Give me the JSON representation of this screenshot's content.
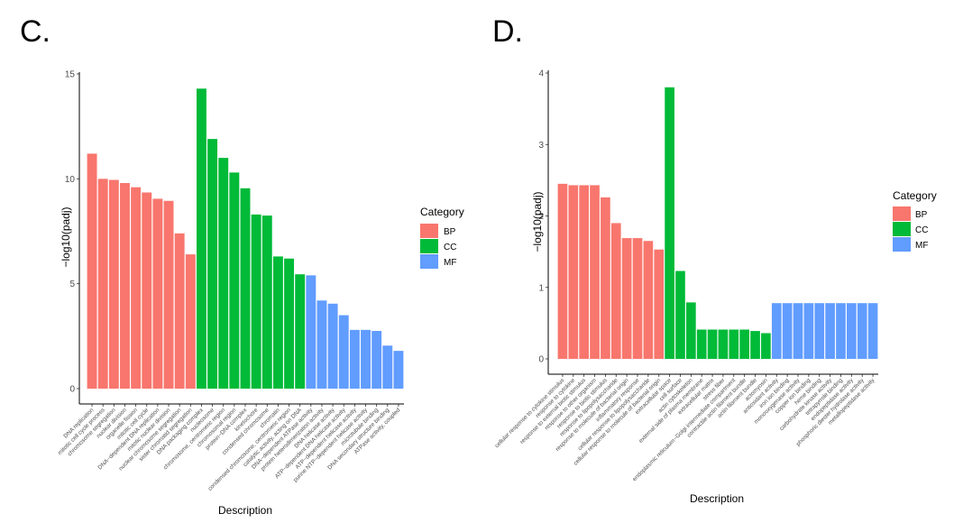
{
  "colors": {
    "BP": "#F8766D",
    "CC": "#00BA38",
    "MF": "#619CFF"
  },
  "chart_data": [
    {
      "panel": "C.",
      "type": "bar",
      "xlabel": "Description",
      "ylabel": "−log10(padj)",
      "ylim": [
        0,
        15
      ],
      "yticks": [
        "0",
        "5",
        "10",
        "15"
      ],
      "legend_title": "Category",
      "legend": [
        "BP",
        "CC",
        "MF"
      ],
      "categories": [
        "DNA replication",
        "mitotic cell cycle process",
        "chromosome segregation",
        "nuclear division",
        "organelle fission",
        "mitotic cell cycle",
        "DNA−dependent DNA replication",
        "mitotic nuclear division",
        "nuclear chromosome segregation",
        "sister chromatid segregation",
        "DNA packaging complex",
        "nucleosome",
        "chromosome, centromeric region",
        "chromosomal region",
        "protein−DNA complex",
        "kinetochore",
        "condensed chromosome",
        "chromatin",
        "condensed chromosome, centromeric region",
        "catalytic activity, acting on DNA",
        "DNA−dependent ATPase activity",
        "protein heterodimerization activity",
        "DNA helicase activity",
        "ATP−dependent DNA helicase activity",
        "ATP−dependent helicase activity",
        "purine NTP−dependent helicase activity",
        "microtubule binding",
        "DNA secondary structure binding",
        "ATPase activity, coupled"
      ],
      "values": [
        11.2,
        10.0,
        9.95,
        9.8,
        9.6,
        9.35,
        9.05,
        8.95,
        7.4,
        6.4,
        14.3,
        11.9,
        11.0,
        10.3,
        9.55,
        8.3,
        8.25,
        6.3,
        6.2,
        5.45,
        5.4,
        4.2,
        4.05,
        3.5,
        2.8,
        2.8,
        2.75,
        2.05,
        1.8
      ],
      "groups": [
        "BP",
        "BP",
        "BP",
        "BP",
        "BP",
        "BP",
        "BP",
        "BP",
        "BP",
        "BP",
        "CC",
        "CC",
        "CC",
        "CC",
        "CC",
        "CC",
        "CC",
        "CC",
        "CC",
        "CC",
        "MF",
        "MF",
        "MF",
        "MF",
        "MF",
        "MF",
        "MF",
        "MF",
        "MF"
      ]
    },
    {
      "panel": "D.",
      "type": "bar",
      "xlabel": "Description",
      "ylabel": "−log10(padj)",
      "ylim": [
        0,
        4
      ],
      "yticks": [
        "0",
        "1",
        "2",
        "3",
        "4"
      ],
      "legend_title": "Category",
      "legend": [
        "BP",
        "CC",
        "MF"
      ],
      "categories": [
        "cellular response to cytokine stimulus",
        "response to cytokine",
        "response to external biotic stimulus",
        "response to other organism",
        "response to biotic stimulus",
        "response to lipopolysaccharide",
        "response to molecule of bacterial origin",
        "inflammatory response",
        "cellular response to lipopolysaccharide",
        "cellular response to molecule of bacterial origin",
        "extracellular space",
        "cell surface",
        "actin cytoskeleton",
        "external side of plasma membrane",
        "extracellular matrix",
        "stress fiber",
        "endoplasmic reticulum−Golgi intermediate compartment",
        "contractile actin filament bundle",
        "actin filament bundle",
        "actomyosin",
        "antioxidant activity",
        "iron ion binding",
        "monooxygenase activity",
        "copper ion binding",
        "heme binding",
        "carbohydrate kinase activity",
        "tetrapyrrole binding",
        "endopeptidase activity",
        "phosphoric diester hydrolase activity",
        "metallopeptidase activity"
      ],
      "values": [
        2.45,
        2.43,
        2.43,
        2.43,
        2.26,
        1.9,
        1.69,
        1.69,
        1.65,
        1.53,
        3.8,
        1.23,
        0.79,
        0.41,
        0.41,
        0.41,
        0.41,
        0.41,
        0.39,
        0.36,
        0.78,
        0.78,
        0.78,
        0.78,
        0.78,
        0.78,
        0.78,
        0.78,
        0.78,
        0.78
      ],
      "groups": [
        "BP",
        "BP",
        "BP",
        "BP",
        "BP",
        "BP",
        "BP",
        "BP",
        "BP",
        "BP",
        "CC",
        "CC",
        "CC",
        "CC",
        "CC",
        "CC",
        "CC",
        "CC",
        "CC",
        "CC",
        "MF",
        "MF",
        "MF",
        "MF",
        "MF",
        "MF",
        "MF",
        "MF",
        "MF",
        "MF"
      ]
    }
  ]
}
